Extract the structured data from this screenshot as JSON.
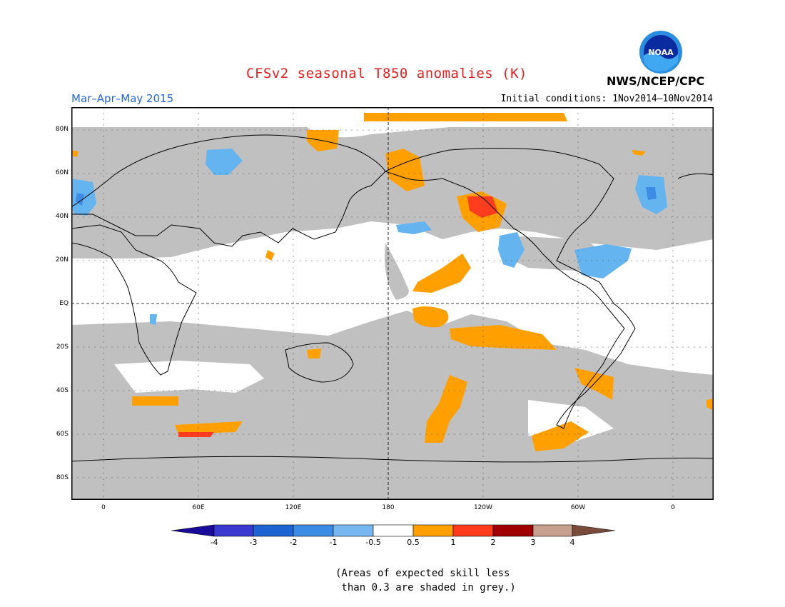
{
  "header": {
    "title": "CFSv2 seasonal T850 anomalies (K)",
    "season": "Mar–Apr–May 2015",
    "initial_conditions": "Initial conditions: 1Nov2014–10Nov2014",
    "organization": "NWS/NCEP/CPC",
    "logo_text": "NOAA"
  },
  "map": {
    "lat_labels": [
      "80N",
      "60N",
      "40N",
      "20N",
      "EQ",
      "20S",
      "40S",
      "60S",
      "80S"
    ],
    "lon_labels": [
      "0",
      "60E",
      "120E",
      "180",
      "120W",
      "60W",
      "0"
    ],
    "colors": {
      "skill_grey": "#c0c0c0",
      "orange": "#ffa000",
      "red_orange": "#ff3c1e",
      "light_blue": "#64b4f0",
      "blue": "#3c8ce6"
    }
  },
  "colorbar": {
    "labels": [
      "-4",
      "-3",
      "-2",
      "-1",
      "-0.5",
      "0.5",
      "1",
      "2",
      "3",
      "4"
    ],
    "colors": [
      "#1a0a9a",
      "#3a3ad0",
      "#1e64d2",
      "#3c8ce6",
      "#78b8f0",
      "#ffffff",
      "#ffa000",
      "#ff3c1e",
      "#a00000",
      "#c8a090",
      "#7a4a3a"
    ]
  },
  "note": {
    "line1": "(Areas of expected skill less",
    "line2": " than 0.3 are shaded in grey.)"
  }
}
